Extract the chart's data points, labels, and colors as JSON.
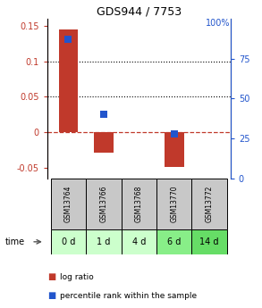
{
  "title": "GDS944 / 7753",
  "samples": [
    "GSM13764",
    "GSM13766",
    "GSM13768",
    "GSM13770",
    "GSM13772"
  ],
  "time_labels": [
    "0 d",
    "1 d",
    "4 d",
    "6 d",
    "14 d"
  ],
  "log_ratios": [
    0.145,
    -0.028,
    0.0,
    -0.048,
    0.0
  ],
  "percentile_ranks": [
    87,
    40,
    null,
    28,
    null
  ],
  "bar_color": "#c0392b",
  "dot_color": "#2255cc",
  "ylim_left": [
    -0.065,
    0.16
  ],
  "ylim_right": [
    0,
    100
  ],
  "yticks_left": [
    -0.05,
    0.0,
    0.05,
    0.1,
    0.15
  ],
  "yticks_right": [
    0,
    25,
    50,
    75
  ],
  "hlines": [
    0.05,
    0.1
  ],
  "sample_box_color": "#c8c8c8",
  "time_box_colors": [
    "#ccffcc",
    "#ccffcc",
    "#ccffcc",
    "#88ee88",
    "#66dd66"
  ],
  "bar_width": 0.55,
  "dot_size": 40,
  "legend_items": [
    {
      "color": "#c0392b",
      "label": "log ratio"
    },
    {
      "color": "#2255cc",
      "label": "percentile rank within the sample"
    }
  ]
}
